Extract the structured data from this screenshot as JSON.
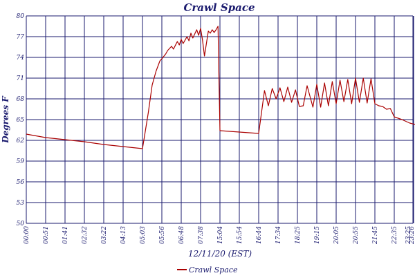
{
  "chart_data": {
    "type": "line",
    "title": "Crawl Space",
    "xlabel": "12/11/20 (EST)",
    "ylabel": "Degrees F",
    "y_tick_labels": [
      "50",
      "53",
      "56",
      "59",
      "62",
      "65",
      "68",
      "71",
      "74",
      "77",
      "80"
    ],
    "ylim": [
      50,
      80
    ],
    "x_tick_labels": [
      "00:00",
      "00:51",
      "01:41",
      "02:32",
      "03:22",
      "04:13",
      "05:03",
      "05:56",
      "06:48",
      "07:38",
      "15:04",
      "15:54",
      "16:44",
      "17:34",
      "18:25",
      "19:15",
      "20:05",
      "20:55",
      "21:45",
      "22:35",
      "23:25",
      "23:26"
    ],
    "grid": true,
    "legend_position": "bottom-center",
    "series": [
      {
        "name": "Crawl Space",
        "color": "#aa0000",
        "x": [
          0,
          1,
          2,
          3,
          4,
          5,
          6,
          6.3,
          6.5,
          6.7,
          6.9,
          7.0,
          7.2,
          7.3,
          7.5,
          7.6,
          7.8,
          7.9,
          8.0,
          8.1,
          8.3,
          8.4,
          8.5,
          8.6,
          8.8,
          8.9,
          9.0,
          9.1,
          9.2,
          9.3,
          9.4,
          9.5,
          9.6,
          9.7,
          9.8,
          9.9,
          10.0,
          10.0,
          11.0,
          12.0,
          12.3,
          12.5,
          12.7,
          12.9,
          13.1,
          13.3,
          13.5,
          13.7,
          13.9,
          14.1,
          14.3,
          14.5,
          14.8,
          15.0,
          15.2,
          15.4,
          15.6,
          15.8,
          16.0,
          16.2,
          16.4,
          16.6,
          16.8,
          17.0,
          17.2,
          17.4,
          17.6,
          17.8,
          18.0,
          18.2,
          18.4,
          18.6,
          18.8,
          19.0,
          19.4,
          19.8,
          20.2,
          20.6,
          21.0
        ],
        "values": [
          62.9,
          62.4,
          62.1,
          61.8,
          61.4,
          61.1,
          60.8,
          66.0,
          70.0,
          72.0,
          73.5,
          73.8,
          74.5,
          75.0,
          75.6,
          75.2,
          76.3,
          75.8,
          76.6,
          76.0,
          77.0,
          76.4,
          77.5,
          76.8,
          78.0,
          77.2,
          78.2,
          76.5,
          74.2,
          76.0,
          77.8,
          77.5,
          78.0,
          77.6,
          78.0,
          78.5,
          63.4,
          63.4,
          63.2,
          63.0,
          69.2,
          67.0,
          69.5,
          68.0,
          69.6,
          67.6,
          69.7,
          67.5,
          69.3,
          66.9,
          67.0,
          69.9,
          66.8,
          70.1,
          66.8,
          70.3,
          67.0,
          70.5,
          67.3,
          70.7,
          67.6,
          70.8,
          67.3,
          71.0,
          67.5,
          71.0,
          67.4,
          70.9,
          67.3,
          67.0,
          66.9,
          66.5,
          66.6,
          65.4,
          65.0,
          64.5,
          64.2,
          64.0,
          63.7
        ]
      }
    ]
  }
}
